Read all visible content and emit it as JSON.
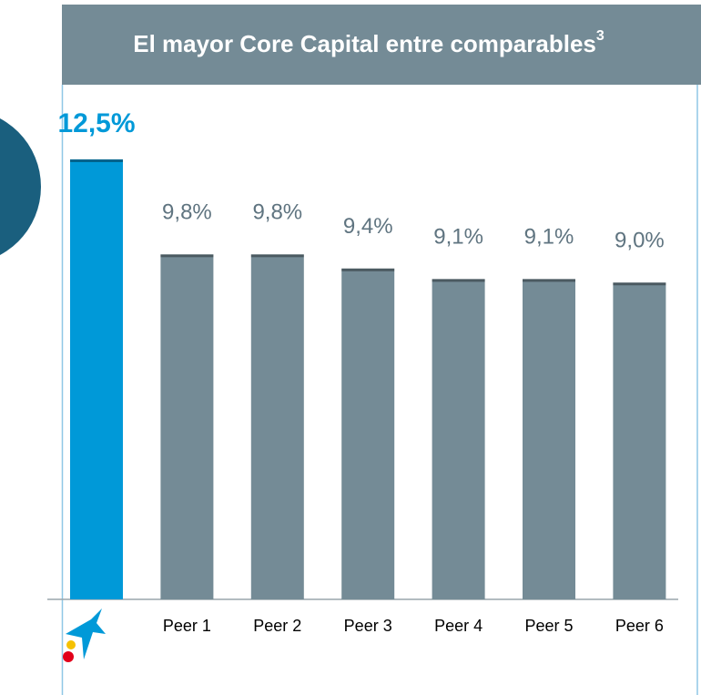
{
  "chart_data": {
    "type": "bar",
    "title": "El mayor Core Capital entre comparables",
    "title_superscript": "3",
    "categories": [
      null,
      "Peer 1",
      "Peer 2",
      "Peer 3",
      "Peer 4",
      "Peer 5",
      "Peer 6"
    ],
    "values": [
      12.5,
      9.8,
      9.8,
      9.4,
      9.1,
      9.1,
      9.0
    ],
    "value_labels": [
      "12,5%",
      "9,8%",
      "9,8%",
      "9,4%",
      "9,1%",
      "9,1%",
      "9,0%"
    ],
    "colors": [
      "#0099d8",
      "#748b96",
      "#748b96",
      "#748b96",
      "#748b96",
      "#748b96",
      "#748b96"
    ],
    "label_colors": [
      "#0099d8",
      "#5f7480",
      "#5f7480",
      "#5f7480",
      "#5f7480",
      "#5f7480",
      "#5f7480"
    ]
  }
}
